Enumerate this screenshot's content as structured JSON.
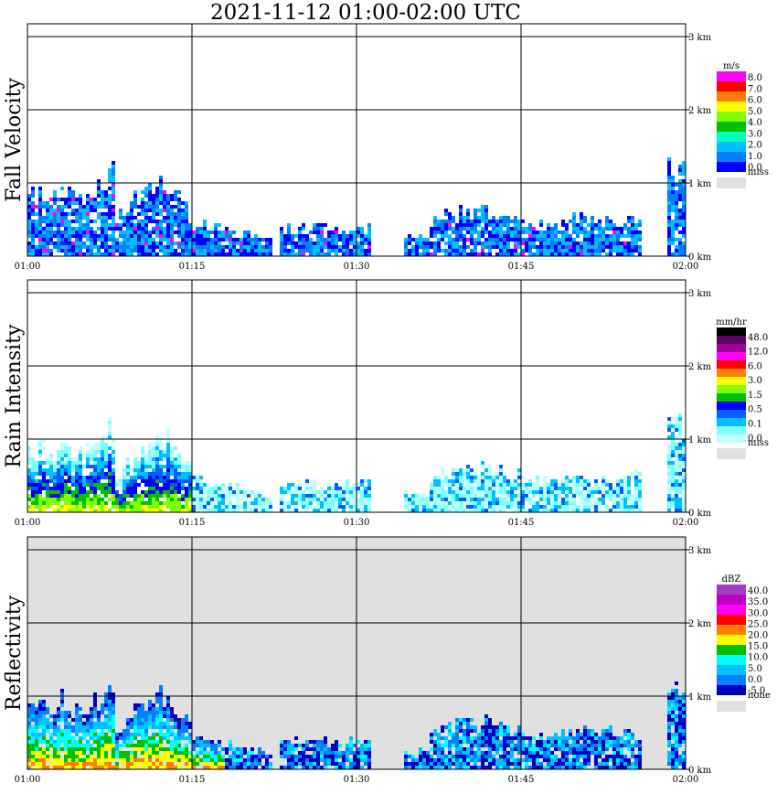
{
  "title": "2021-11-12   01:00-02:00 UTC",
  "chart_data": [
    {
      "type": "heatmap",
      "ylabel": "Fall Velocity",
      "x_ticks": [
        "01:00",
        "01:15",
        "01:30",
        "01:45",
        "02:00"
      ],
      "y_ticks": [
        "0 km",
        "1 km",
        "2 km",
        "3 km"
      ],
      "legend": {
        "unit": "m/s",
        "labels": [
          "8.0",
          "7.0",
          "6.0",
          "5.0",
          "4.0",
          "3.0",
          "2.0",
          "1.0",
          "0.0"
        ],
        "colors": [
          "#ff00ff",
          "#ff0000",
          "#ff8000",
          "#ffff00",
          "#80ff00",
          "#00c000",
          "#00ffc0",
          "#00c0ff",
          "#0080ff",
          "#0000ff"
        ],
        "miss_label": "miss",
        "miss_color": "#e0e0e0"
      },
      "background": "#ffffff"
    },
    {
      "type": "heatmap",
      "ylabel": "Rain Intensity",
      "x_ticks": [
        "01:00",
        "01:15",
        "01:30",
        "01:45",
        "02:00"
      ],
      "y_ticks": [
        "0 km",
        "1 km",
        "2 km",
        "3 km"
      ],
      "legend": {
        "unit": "mm/hr",
        "labels": [
          "48.0",
          "12.0",
          "6.0",
          "3.0",
          "1.5",
          "0.5",
          "0.1",
          "0.0"
        ],
        "colors": [
          "#000000",
          "#600060",
          "#a000a0",
          "#ff00ff",
          "#ff0000",
          "#ff8000",
          "#ffff00",
          "#80ff00",
          "#00c000",
          "#0000ff",
          "#0060ff",
          "#00c0ff",
          "#80ffff",
          "#c0ffff"
        ],
        "miss_label": "miss",
        "miss_color": "#e0e0e0"
      },
      "background": "#ffffff"
    },
    {
      "type": "heatmap",
      "ylabel": "Reflectivity",
      "x_ticks": [
        "01:00",
        "01:15",
        "01:30",
        "01:45",
        "02:00"
      ],
      "y_ticks": [
        "0 km",
        "1 km",
        "2 km",
        "3 km"
      ],
      "legend": {
        "unit": "dBZ",
        "labels": [
          "40.0",
          "35.0",
          "30.0",
          "25.0",
          "20.0",
          "15.0",
          "10.0",
          "5.0",
          "0.0",
          "-5.0"
        ],
        "colors": [
          "#a040c0",
          "#c000c0",
          "#ff00ff",
          "#ff0000",
          "#ff8000",
          "#ffff00",
          "#00c000",
          "#00ffff",
          "#00c0ff",
          "#0080ff",
          "#0000c0"
        ],
        "miss_label": "none",
        "miss_color": "#e0e0e0"
      },
      "background": "#e0e0e0"
    }
  ]
}
